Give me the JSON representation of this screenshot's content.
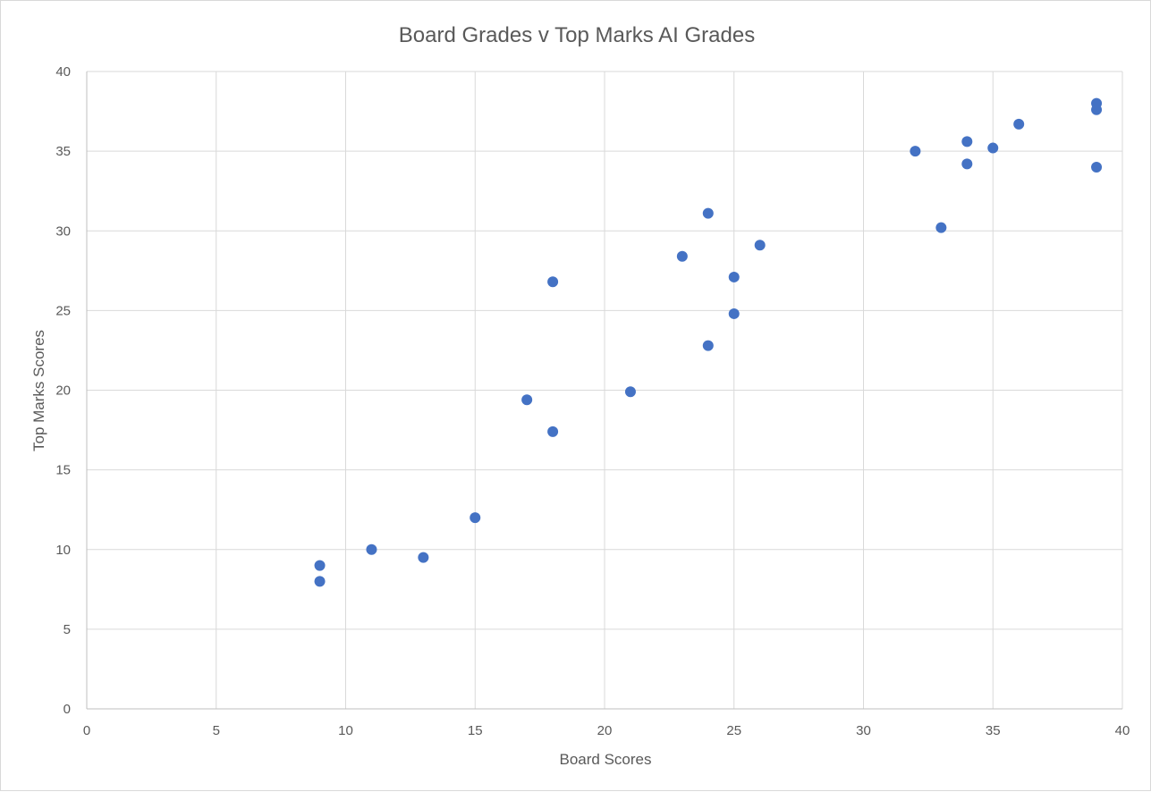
{
  "chart_data": {
    "type": "scatter",
    "title": "Board Grades v Top Marks AI Grades",
    "xlabel": "Board Scores",
    "ylabel": "Top Marks Scores",
    "xlim": [
      0,
      40
    ],
    "ylim": [
      0,
      40
    ],
    "xticks": [
      0,
      5,
      10,
      15,
      20,
      25,
      30,
      35,
      40
    ],
    "yticks": [
      0,
      5,
      10,
      15,
      20,
      25,
      30,
      35,
      40
    ],
    "grid": true,
    "legend": "none",
    "marker_color": "#4472C4",
    "series": [
      {
        "points": [
          {
            "x": 9,
            "y": 9
          },
          {
            "x": 9,
            "y": 8
          },
          {
            "x": 11,
            "y": 10
          },
          {
            "x": 13,
            "y": 9.5
          },
          {
            "x": 15,
            "y": 12
          },
          {
            "x": 17,
            "y": 19.4
          },
          {
            "x": 18,
            "y": 17.4
          },
          {
            "x": 18,
            "y": 26.8
          },
          {
            "x": 21,
            "y": 19.9
          },
          {
            "x": 23,
            "y": 28.4
          },
          {
            "x": 24,
            "y": 31.1
          },
          {
            "x": 24,
            "y": 22.8
          },
          {
            "x": 25,
            "y": 27.1
          },
          {
            "x": 25,
            "y": 24.8
          },
          {
            "x": 26,
            "y": 29.1
          },
          {
            "x": 32,
            "y": 35
          },
          {
            "x": 33,
            "y": 30.2
          },
          {
            "x": 34,
            "y": 35.6
          },
          {
            "x": 34,
            "y": 34.2
          },
          {
            "x": 35,
            "y": 35.2
          },
          {
            "x": 36,
            "y": 36.7
          },
          {
            "x": 39,
            "y": 38
          },
          {
            "x": 39,
            "y": 37.6
          },
          {
            "x": 39,
            "y": 34
          }
        ]
      }
    ]
  }
}
